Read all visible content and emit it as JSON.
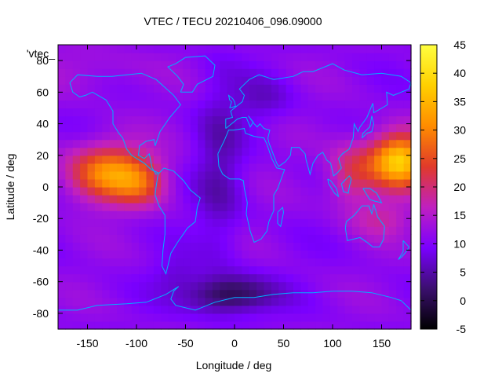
{
  "chart_data": {
    "type": "heatmap",
    "title": "VTEC / TECU 20210406_096.09000",
    "xlabel": "Longitude / deg",
    "ylabel": "Latitude / deg",
    "legend_label": "'vtec_",
    "xlim": [
      -180,
      180
    ],
    "ylim": [
      -90,
      90
    ],
    "x_ticks": [
      -150,
      -100,
      -50,
      0,
      50,
      100,
      150
    ],
    "y_ticks": [
      -80,
      -60,
      -40,
      -20,
      0,
      20,
      40,
      60,
      80
    ],
    "colorbar": {
      "range": [
        -5,
        45
      ],
      "ticks": [
        -5,
        0,
        5,
        10,
        15,
        20,
        25,
        30,
        35,
        40,
        45
      ],
      "palette": [
        "#000000",
        "#3b0f6f",
        "#7a00ff",
        "#c020c0",
        "#e03a2a",
        "#ff8c00",
        "#ffd000",
        "#ffff40"
      ]
    },
    "grid": false,
    "coastline_color": "#00b0ff",
    "features": [
      {
        "name": "crest",
        "lon": -128,
        "lat": 10,
        "peak_vtec": 32
      },
      {
        "name": "crest",
        "lon": 165,
        "lat": 17,
        "peak_vtec": 38
      },
      {
        "name": "trough",
        "lon": -10,
        "lat": -68,
        "peak_vtec": -1
      }
    ]
  }
}
